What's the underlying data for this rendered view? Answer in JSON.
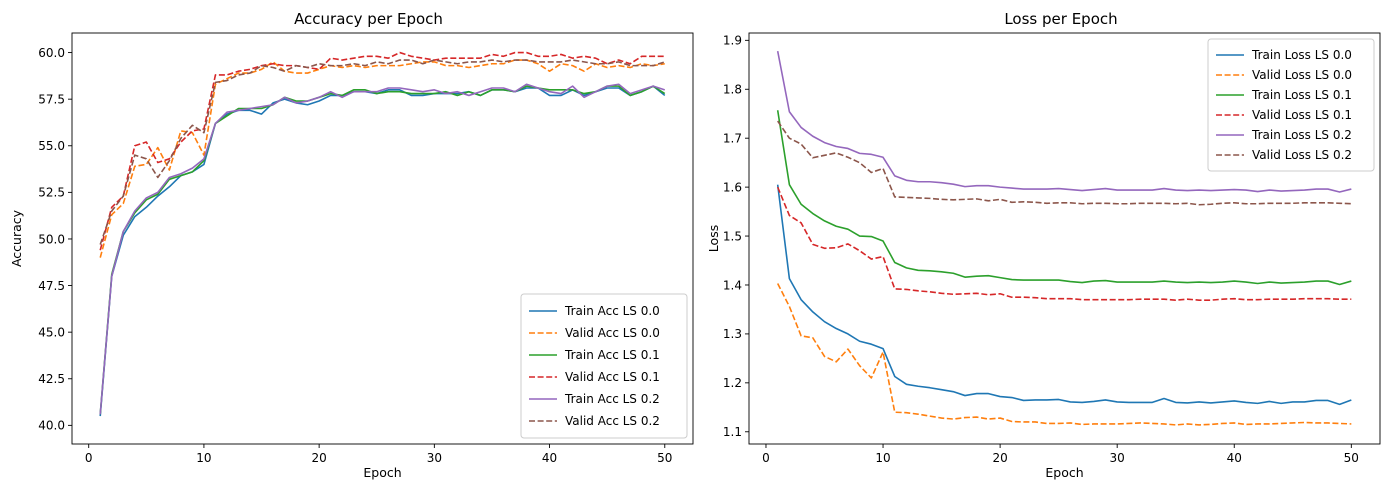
{
  "chart_data": [
    {
      "type": "line",
      "title": "Accuracy per Epoch",
      "xlabel": "Epoch",
      "ylabel": "Accuracy",
      "xlim": [
        -1.45,
        52.45
      ],
      "ylim": [
        39.0,
        61.05
      ],
      "xticks": [
        0,
        10,
        20,
        30,
        40,
        50
      ],
      "yticks": [
        40.0,
        42.5,
        45.0,
        47.5,
        50.0,
        52.5,
        55.0,
        57.5,
        60.0
      ],
      "grid": false,
      "legend_position": "lower-right",
      "x": [
        1,
        2,
        3,
        4,
        5,
        6,
        7,
        8,
        9,
        10,
        11,
        12,
        13,
        14,
        15,
        16,
        17,
        18,
        19,
        20,
        21,
        22,
        23,
        24,
        25,
        26,
        27,
        28,
        29,
        30,
        31,
        32,
        33,
        34,
        35,
        36,
        37,
        38,
        39,
        40,
        41,
        42,
        43,
        44,
        45,
        46,
        47,
        48,
        49,
        50
      ],
      "series": [
        {
          "name": "Train Acc LS 0.0",
          "color": "#1f77b4",
          "dash": "solid",
          "values": [
            40.5,
            48.0,
            50.2,
            51.2,
            51.7,
            52.3,
            52.8,
            53.4,
            53.6,
            54.0,
            56.2,
            56.7,
            56.9,
            56.9,
            56.7,
            57.3,
            57.5,
            57.3,
            57.2,
            57.4,
            57.7,
            57.7,
            57.9,
            57.9,
            57.8,
            58.0,
            58.0,
            57.7,
            57.7,
            57.8,
            57.8,
            57.8,
            57.9,
            57.7,
            58.0,
            58.0,
            57.9,
            58.1,
            58.1,
            57.7,
            57.7,
            58.0,
            57.7,
            57.9,
            58.1,
            58.1,
            57.7,
            57.9,
            58.2,
            57.7
          ]
        },
        {
          "name": "Valid Acc LS 0.0",
          "color": "#ff7f0e",
          "dash": "dashed",
          "values": [
            49.0,
            51.3,
            51.9,
            53.9,
            54.0,
            54.9,
            53.7,
            55.8,
            55.7,
            54.5,
            58.3,
            58.6,
            58.9,
            58.9,
            59.1,
            59.5,
            59.0,
            58.9,
            58.9,
            59.1,
            59.3,
            59.2,
            59.3,
            59.2,
            59.3,
            59.3,
            59.3,
            59.4,
            59.5,
            59.5,
            59.3,
            59.3,
            59.2,
            59.3,
            59.4,
            59.4,
            59.6,
            59.6,
            59.4,
            59.0,
            59.4,
            59.3,
            59.0,
            59.4,
            59.2,
            59.3,
            59.2,
            59.4,
            59.3,
            59.4
          ]
        },
        {
          "name": "Train Acc LS 0.1",
          "color": "#2ca02c",
          "dash": "solid",
          "values": [
            40.6,
            48.1,
            50.4,
            51.4,
            52.1,
            52.4,
            53.2,
            53.4,
            53.6,
            54.2,
            56.2,
            56.6,
            57.0,
            57.0,
            57.0,
            57.2,
            57.6,
            57.4,
            57.4,
            57.6,
            57.8,
            57.7,
            58.0,
            58.0,
            57.8,
            57.9,
            57.9,
            57.8,
            57.8,
            57.8,
            57.9,
            57.7,
            57.9,
            57.7,
            58.0,
            58.0,
            57.9,
            58.2,
            58.1,
            58.0,
            58.0,
            58.0,
            57.8,
            57.9,
            58.2,
            58.2,
            57.7,
            57.9,
            58.2,
            57.8
          ]
        },
        {
          "name": "Valid Acc LS 0.1",
          "color": "#d62728",
          "dash": "dashed",
          "values": [
            49.4,
            51.7,
            52.3,
            55.0,
            55.2,
            54.1,
            54.3,
            55.2,
            55.8,
            55.9,
            58.8,
            58.8,
            59.0,
            59.1,
            59.3,
            59.4,
            59.3,
            59.3,
            59.2,
            59.1,
            59.7,
            59.6,
            59.7,
            59.8,
            59.8,
            59.7,
            60.0,
            59.8,
            59.7,
            59.6,
            59.7,
            59.7,
            59.7,
            59.7,
            59.9,
            59.8,
            60.0,
            60.0,
            59.8,
            59.8,
            59.9,
            59.7,
            59.8,
            59.7,
            59.4,
            59.6,
            59.4,
            59.8,
            59.8,
            59.8
          ]
        },
        {
          "name": "Train Acc LS 0.2",
          "color": "#9467bd",
          "dash": "solid",
          "values": [
            40.6,
            48.0,
            50.4,
            51.5,
            52.2,
            52.5,
            53.3,
            53.5,
            53.8,
            54.3,
            56.2,
            56.8,
            56.9,
            57.0,
            57.1,
            57.2,
            57.6,
            57.3,
            57.4,
            57.6,
            57.9,
            57.6,
            57.9,
            57.9,
            57.9,
            58.1,
            58.1,
            58.0,
            57.9,
            58.0,
            57.8,
            57.9,
            57.7,
            57.9,
            58.1,
            58.1,
            57.9,
            58.3,
            58.1,
            57.9,
            57.8,
            58.2,
            57.6,
            57.9,
            58.2,
            58.3,
            57.8,
            58.0,
            58.2,
            58.0
          ]
        },
        {
          "name": "Valid Acc LS 0.2",
          "color": "#8c564b",
          "dash": "dashed",
          "values": [
            49.7,
            51.5,
            52.3,
            54.5,
            54.3,
            53.3,
            54.2,
            55.4,
            56.1,
            55.7,
            58.4,
            58.5,
            58.8,
            58.9,
            59.3,
            59.2,
            59.0,
            59.3,
            59.2,
            59.4,
            59.3,
            59.3,
            59.4,
            59.3,
            59.5,
            59.4,
            59.6,
            59.6,
            59.4,
            59.6,
            59.5,
            59.4,
            59.5,
            59.5,
            59.6,
            59.5,
            59.6,
            59.6,
            59.5,
            59.5,
            59.5,
            59.6,
            59.5,
            59.4,
            59.4,
            59.5,
            59.3,
            59.3,
            59.3,
            59.5
          ]
        }
      ]
    },
    {
      "type": "line",
      "title": "Loss per Epoch",
      "xlabel": "Epoch",
      "ylabel": "Loss",
      "xlim": [
        -1.45,
        52.45
      ],
      "ylim": [
        1.075,
        1.915
      ],
      "xticks": [
        0,
        10,
        20,
        30,
        40,
        50
      ],
      "yticks": [
        1.1,
        1.2,
        1.3,
        1.4,
        1.5,
        1.6,
        1.7,
        1.8,
        1.9
      ],
      "grid": false,
      "legend_position": "upper-right",
      "x": [
        1,
        2,
        3,
        4,
        5,
        6,
        7,
        8,
        9,
        10,
        11,
        12,
        13,
        14,
        15,
        16,
        17,
        18,
        19,
        20,
        21,
        22,
        23,
        24,
        25,
        26,
        27,
        28,
        29,
        30,
        31,
        32,
        33,
        34,
        35,
        36,
        37,
        38,
        39,
        40,
        41,
        42,
        43,
        44,
        45,
        46,
        47,
        48,
        49,
        50
      ],
      "series": [
        {
          "name": "Train Loss LS 0.0",
          "color": "#1f77b4",
          "dash": "solid",
          "values": [
            1.605,
            1.413,
            1.37,
            1.345,
            1.325,
            1.311,
            1.3,
            1.285,
            1.279,
            1.27,
            1.213,
            1.197,
            1.193,
            1.19,
            1.186,
            1.182,
            1.174,
            1.178,
            1.178,
            1.172,
            1.17,
            1.164,
            1.165,
            1.165,
            1.166,
            1.161,
            1.16,
            1.162,
            1.165,
            1.161,
            1.16,
            1.16,
            1.16,
            1.168,
            1.16,
            1.159,
            1.161,
            1.159,
            1.161,
            1.163,
            1.16,
            1.158,
            1.162,
            1.158,
            1.161,
            1.161,
            1.164,
            1.164,
            1.156,
            1.165
          ]
        },
        {
          "name": "Valid Loss LS 0.0",
          "color": "#ff7f0e",
          "dash": "dashed",
          "values": [
            1.403,
            1.356,
            1.296,
            1.292,
            1.254,
            1.243,
            1.269,
            1.235,
            1.21,
            1.263,
            1.14,
            1.139,
            1.136,
            1.132,
            1.128,
            1.126,
            1.129,
            1.13,
            1.126,
            1.128,
            1.121,
            1.12,
            1.12,
            1.117,
            1.117,
            1.118,
            1.115,
            1.116,
            1.116,
            1.116,
            1.117,
            1.118,
            1.117,
            1.116,
            1.114,
            1.116,
            1.114,
            1.115,
            1.117,
            1.118,
            1.115,
            1.116,
            1.116,
            1.117,
            1.118,
            1.119,
            1.118,
            1.118,
            1.117,
            1.116
          ]
        },
        {
          "name": "Train Loss LS 0.1",
          "color": "#2ca02c",
          "dash": "solid",
          "values": [
            1.757,
            1.605,
            1.565,
            1.546,
            1.531,
            1.52,
            1.514,
            1.5,
            1.499,
            1.49,
            1.446,
            1.435,
            1.43,
            1.429,
            1.427,
            1.424,
            1.416,
            1.418,
            1.419,
            1.415,
            1.411,
            1.41,
            1.41,
            1.41,
            1.41,
            1.407,
            1.405,
            1.408,
            1.409,
            1.406,
            1.406,
            1.406,
            1.406,
            1.408,
            1.406,
            1.405,
            1.406,
            1.405,
            1.406,
            1.408,
            1.406,
            1.403,
            1.406,
            1.404,
            1.405,
            1.406,
            1.408,
            1.408,
            1.401,
            1.408
          ]
        },
        {
          "name": "Valid Loss LS 0.1",
          "color": "#d62728",
          "dash": "dashed",
          "values": [
            1.6,
            1.542,
            1.527,
            1.483,
            1.475,
            1.476,
            1.484,
            1.47,
            1.453,
            1.458,
            1.392,
            1.391,
            1.388,
            1.386,
            1.383,
            1.381,
            1.382,
            1.383,
            1.38,
            1.382,
            1.375,
            1.375,
            1.374,
            1.372,
            1.372,
            1.372,
            1.37,
            1.37,
            1.37,
            1.37,
            1.37,
            1.371,
            1.371,
            1.371,
            1.369,
            1.371,
            1.369,
            1.369,
            1.371,
            1.372,
            1.37,
            1.37,
            1.371,
            1.371,
            1.371,
            1.372,
            1.372,
            1.372,
            1.371,
            1.371
          ]
        },
        {
          "name": "Train Loss LS 0.2",
          "color": "#9467bd",
          "dash": "solid",
          "values": [
            1.878,
            1.754,
            1.722,
            1.704,
            1.691,
            1.683,
            1.679,
            1.669,
            1.667,
            1.661,
            1.623,
            1.614,
            1.611,
            1.611,
            1.609,
            1.606,
            1.601,
            1.603,
            1.603,
            1.6,
            1.598,
            1.596,
            1.596,
            1.596,
            1.597,
            1.595,
            1.593,
            1.595,
            1.597,
            1.594,
            1.594,
            1.594,
            1.594,
            1.597,
            1.594,
            1.593,
            1.594,
            1.593,
            1.594,
            1.595,
            1.594,
            1.591,
            1.594,
            1.592,
            1.593,
            1.594,
            1.596,
            1.596,
            1.59,
            1.596
          ]
        },
        {
          "name": "Valid Loss LS 0.2",
          "color": "#8c564b",
          "dash": "dashed",
          "values": [
            1.735,
            1.7,
            1.688,
            1.66,
            1.665,
            1.67,
            1.661,
            1.65,
            1.63,
            1.638,
            1.58,
            1.579,
            1.578,
            1.577,
            1.575,
            1.574,
            1.575,
            1.576,
            1.572,
            1.575,
            1.569,
            1.57,
            1.569,
            1.567,
            1.568,
            1.568,
            1.566,
            1.567,
            1.567,
            1.566,
            1.566,
            1.567,
            1.567,
            1.567,
            1.566,
            1.567,
            1.564,
            1.565,
            1.567,
            1.568,
            1.566,
            1.566,
            1.567,
            1.567,
            1.567,
            1.568,
            1.568,
            1.568,
            1.567,
            1.566
          ]
        }
      ]
    }
  ]
}
